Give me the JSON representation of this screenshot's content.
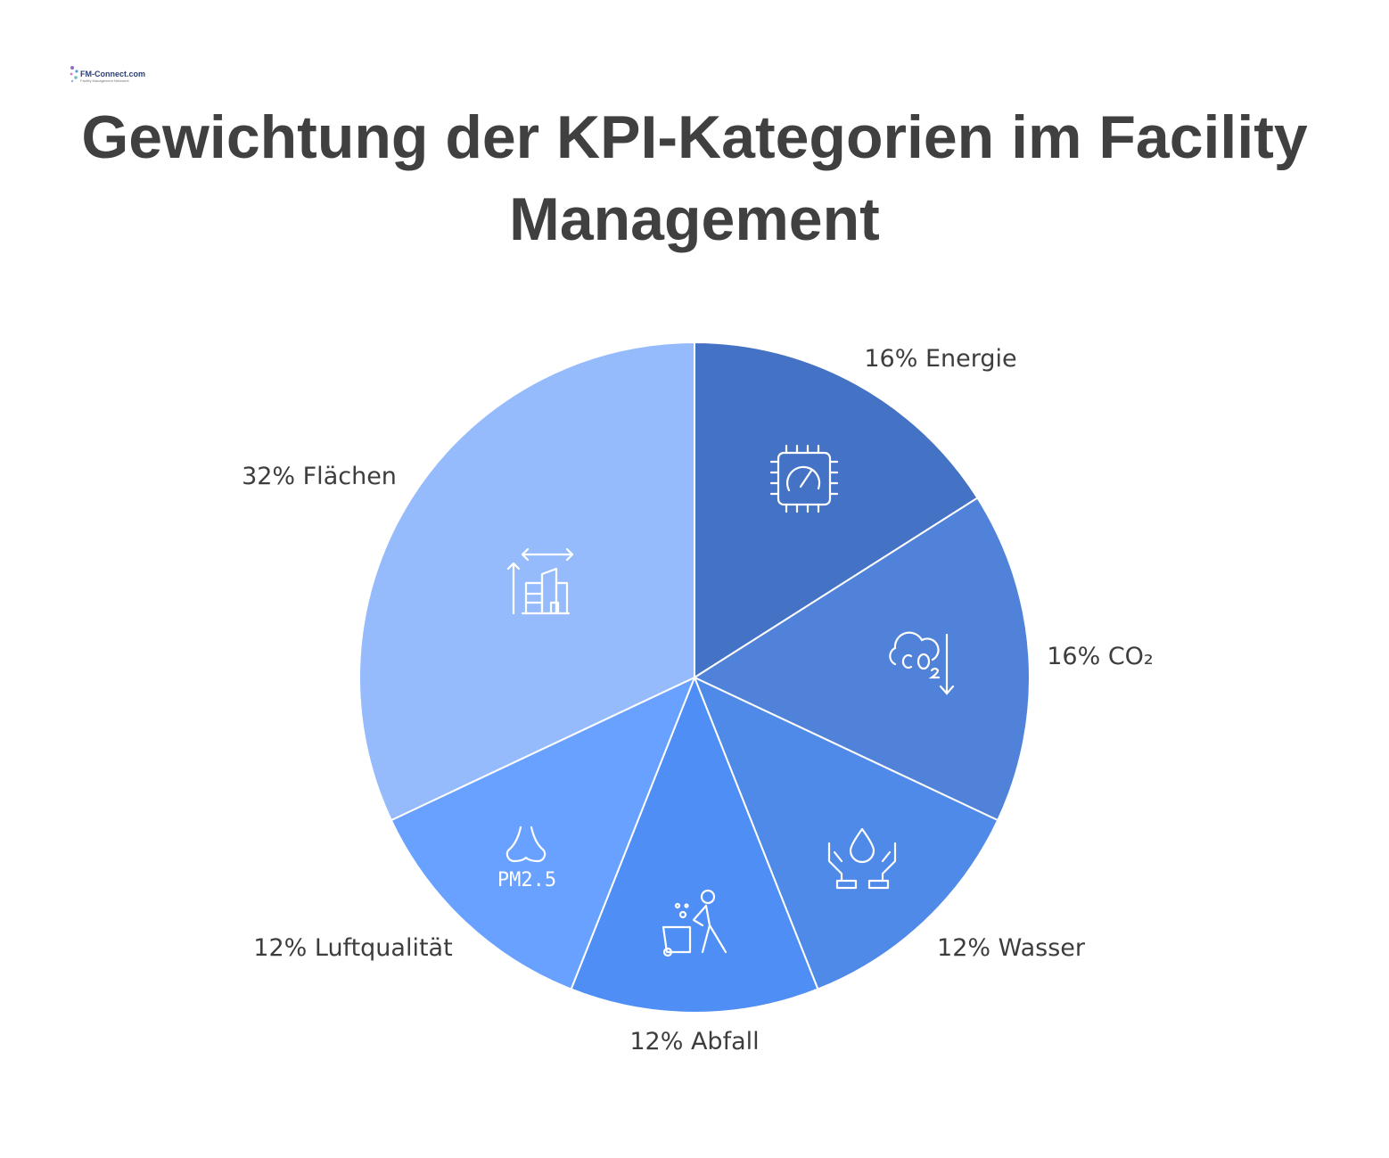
{
  "logo": {
    "text": "FM-Connect.com",
    "tagline": "Facility Management Netzwerk"
  },
  "title_line1": "Gewichtung der KPI-Kategorien im Facility",
  "title_line2": "Management",
  "colors": {
    "energie": "#4472c4",
    "co2": "#4f82d8",
    "wasser": "#4f8ae8",
    "abfall": "#4f8ef5",
    "luftqualitaet": "#68a1ff",
    "flaechen": "#96bbfd",
    "text": "#404040"
  },
  "chart_data": {
    "type": "pie",
    "title": "Gewichtung der KPI-Kategorien im Facility Management",
    "slices": [
      {
        "name": "Energie",
        "value": 16,
        "label": "16% Energie",
        "color": "#4472c4",
        "icon": "chip-gauge-icon"
      },
      {
        "name": "CO₂",
        "value": 16,
        "label": "16% CO₂",
        "color": "#4f82d8",
        "icon": "co2-cloud-down-icon"
      },
      {
        "name": "Wasser",
        "value": 12,
        "label": "12% Wasser",
        "color": "#4f8ae8",
        "icon": "hands-water-drop-icon"
      },
      {
        "name": "Abfall",
        "value": 12,
        "label": "12% Abfall",
        "color": "#4f8ef5",
        "icon": "person-waste-bin-icon"
      },
      {
        "name": "Luftqualität",
        "value": 12,
        "label": "12% Luftqualität",
        "color": "#68a1ff",
        "icon": "nose-pm25-icon",
        "icon_text": "PM2.5"
      },
      {
        "name": "Flächen",
        "value": 32,
        "label": "32% Flächen",
        "color": "#96bbfd",
        "icon": "building-area-icon"
      }
    ]
  }
}
